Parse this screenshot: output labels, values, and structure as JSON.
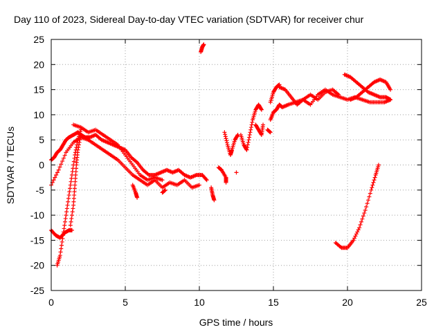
{
  "chart_data": {
    "type": "scatter",
    "title": "Day 110 of 2023, Sidereal Day-to-day VTEC variation (SDTVAR) for receiver chur",
    "xlabel": "GPS time / hours",
    "ylabel": "SDTVAR / TECUs",
    "xlim": [
      0,
      25
    ],
    "ylim": [
      -25,
      25
    ],
    "xticks": [
      0,
      5,
      10,
      15,
      20,
      25
    ],
    "yticks": [
      -25,
      -20,
      -15,
      -10,
      -5,
      0,
      5,
      10,
      15,
      20,
      25
    ],
    "grid": true,
    "legend": "none",
    "marker": "+",
    "series_color": "#ff0000",
    "series": [
      {
        "name": "SDTVAR",
        "segments": [
          {
            "x": [
              0.0,
              0.2,
              0.4,
              0.6,
              0.8,
              1.0,
              1.2,
              1.5,
              1.8,
              2.0,
              2.3,
              2.6,
              3.0,
              3.4,
              3.8,
              4.2,
              4.6,
              5.0,
              5.4,
              5.8,
              6.2,
              6.6,
              7.0,
              7.4,
              7.8,
              8.2,
              8.6,
              9.0,
              9.4,
              9.8,
              10.2,
              10.5
            ],
            "y": [
              1.0,
              1.5,
              2.5,
              3.0,
              4.0,
              5.0,
              5.5,
              6.0,
              6.5,
              6.0,
              5.5,
              5.5,
              6.0,
              5.0,
              4.5,
              4.0,
              3.5,
              3.0,
              1.5,
              0.5,
              -1.0,
              -2.0,
              -2.0,
              -1.5,
              -1.0,
              -1.5,
              -1.0,
              -2.0,
              -2.5,
              -2.0,
              -2.0,
              -3.0
            ]
          },
          {
            "x": [
              0.0,
              0.5,
              1.0,
              1.5,
              2.0,
              2.5,
              3.0,
              3.5,
              4.0,
              4.5,
              5.0,
              5.5,
              6.0,
              6.5,
              7.0,
              7.5,
              8.0,
              8.5,
              9.0,
              9.5,
              10.0
            ],
            "y": [
              -4.0,
              -1.0,
              2.5,
              4.5,
              5.5,
              5.0,
              4.0,
              3.0,
              2.0,
              1.0,
              -0.5,
              -2.0,
              -3.0,
              -4.0,
              -3.0,
              -4.5,
              -3.5,
              -4.0,
              -3.0,
              -4.5,
              -4.0
            ]
          },
          {
            "x": [
              1.5,
              2.0,
              2.5,
              3.0,
              3.5,
              4.0,
              4.5,
              5.0,
              5.5,
              6.0,
              6.5,
              7.0,
              7.5
            ],
            "y": [
              8.0,
              7.5,
              6.5,
              7.0,
              6.0,
              5.0,
              4.0,
              2.0,
              0.0,
              -2.0,
              -3.0,
              -2.5,
              -3.0
            ]
          },
          {
            "x": [
              0.0,
              0.3,
              0.6,
              0.9,
              1.2,
              1.4
            ],
            "y": [
              -13.0,
              -14.0,
              -14.5,
              -13.5,
              -13.0,
              -13.0
            ]
          },
          {
            "x": [
              0.4,
              0.6,
              0.8,
              1.0,
              1.2,
              1.4,
              1.6,
              1.8,
              2.0
            ],
            "y": [
              -20.0,
              -18.0,
              -14.0,
              -10.0,
              -6.0,
              -2.0,
              2.0,
              5.0,
              7.0
            ]
          },
          {
            "x": [
              1.3,
              1.5,
              1.6,
              1.7,
              1.8,
              2.0
            ],
            "y": [
              -12.0,
              -8.0,
              -4.0,
              0.0,
              3.0,
              6.0
            ]
          },
          {
            "x": [
              5.5,
              5.7,
              5.8
            ],
            "y": [
              -4.0,
              -5.5,
              -6.5
            ]
          },
          {
            "x": [
              7.5,
              7.7
            ],
            "y": [
              -5.5,
              -5.0
            ]
          },
          {
            "x": [
              10.1,
              10.2,
              10.3
            ],
            "y": [
              22.5,
              23.5,
              24.0
            ]
          },
          {
            "x": [
              10.8,
              10.9,
              11.0
            ],
            "y": [
              -4.5,
              -6.0,
              -7.0
            ]
          },
          {
            "x": [
              11.3,
              11.5,
              11.8,
              11.8
            ],
            "y": [
              -0.5,
              -1.0,
              -2.5,
              -3.5
            ]
          },
          {
            "x": [
              11.7,
              11.9,
              12.1,
              12.2,
              12.4,
              12.6
            ],
            "y": [
              6.5,
              4.0,
              2.0,
              3.0,
              5.0,
              6.0
            ]
          },
          {
            "x": [
              12.5
            ],
            "y": [
              -1.5
            ]
          },
          {
            "x": [
              12.8,
              13.0,
              13.2,
              13.4,
              13.6,
              13.8,
              14.0,
              14.2
            ],
            "y": [
              6.0,
              4.0,
              3.0,
              6.0,
              9.0,
              11.0,
              12.0,
              11.0
            ]
          },
          {
            "x": [
              13.8,
              14.0,
              14.2,
              14.3
            ],
            "y": [
              8.0,
              7.0,
              6.0,
              8.0
            ]
          },
          {
            "x": [
              14.6,
              14.8
            ],
            "y": [
              7.0,
              6.5
            ]
          },
          {
            "x": [
              14.8,
              15.0,
              15.2,
              15.4,
              15.6,
              16.0,
              16.5,
              17.0,
              17.5,
              18.0,
              18.5,
              19.0,
              19.5,
              20.0,
              20.5,
              21.0,
              21.5,
              22.0,
              22.5,
              22.9
            ],
            "y": [
              9.0,
              10.5,
              11.0,
              12.0,
              11.5,
              12.0,
              12.5,
              13.0,
              12.0,
              14.0,
              15.0,
              14.0,
              13.5,
              13.0,
              13.5,
              13.0,
              12.5,
              12.5,
              12.5,
              13.0
            ]
          },
          {
            "x": [
              14.8,
              15.0,
              15.2,
              15.4
            ],
            "y": [
              12.5,
              14.5,
              15.5,
              16.0
            ]
          },
          {
            "x": [
              15.4,
              15.8,
              16.2,
              16.6,
              17.0,
              17.5,
              18.0,
              18.5,
              19.0,
              19.4
            ],
            "y": [
              15.5,
              15.0,
              13.5,
              12.0,
              13.0,
              14.0,
              13.0,
              14.5,
              15.0,
              14.0
            ]
          },
          {
            "x": [
              19.8,
              20.2,
              20.6,
              21.0,
              21.4,
              21.8,
              22.2,
              22.6,
              22.9
            ],
            "y": [
              18.0,
              17.5,
              16.5,
              15.5,
              14.5,
              14.0,
              13.5,
              13.5,
              13.0
            ]
          },
          {
            "x": [
              20.2,
              20.6,
              21.0,
              21.4,
              21.8,
              22.2,
              22.6,
              22.9
            ],
            "y": [
              13.0,
              13.5,
              14.5,
              15.5,
              16.5,
              17.0,
              16.5,
              15.0
            ]
          },
          {
            "x": [
              19.2,
              19.6,
              20.0,
              20.4,
              20.8,
              21.2,
              21.6,
              21.9,
              22.1
            ],
            "y": [
              -15.5,
              -16.5,
              -16.5,
              -15.0,
              -12.5,
              -9.0,
              -5.0,
              -2.0,
              0.0
            ]
          }
        ]
      }
    ]
  }
}
